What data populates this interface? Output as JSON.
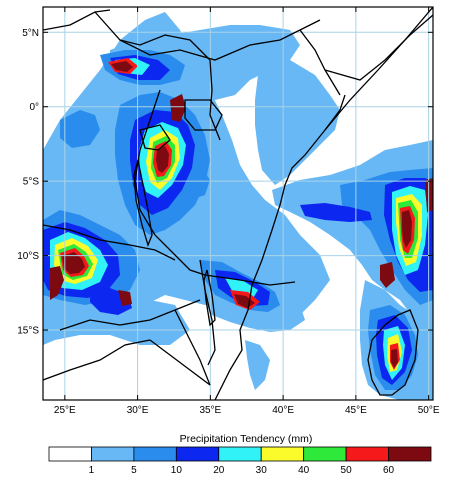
{
  "map": {
    "lon_range": [
      23.5,
      50.3
    ],
    "lat_range": [
      -19.7,
      6.7
    ],
    "x_ticks": [
      {
        "value": 25,
        "label": "25°E"
      },
      {
        "value": 30,
        "label": "30°E"
      },
      {
        "value": 35,
        "label": "35°E"
      },
      {
        "value": 40,
        "label": "40°E"
      },
      {
        "value": 45,
        "label": "45°E"
      },
      {
        "value": 50,
        "label": "50°E"
      }
    ],
    "y_ticks": [
      {
        "value": 5,
        "label": "5°N"
      },
      {
        "value": 0,
        "label": "0°"
      },
      {
        "value": -5,
        "label": "5°S"
      },
      {
        "value": -10,
        "label": "10°S"
      },
      {
        "value": -15,
        "label": "15°S"
      }
    ],
    "grid": true,
    "grid_color": "#a9d3e6"
  },
  "colorbar": {
    "title": "Precipitation Tendency  (mm)",
    "levels": [
      "1",
      "5",
      "10",
      "20",
      "30",
      "40",
      "50",
      "60"
    ],
    "colors": [
      "#ffffff",
      "#68b8f5",
      "#2a8cec",
      "#0c27f0",
      "#31f3f7",
      "#fbfb2c",
      "#2ee83a",
      "#f5191b",
      "#7c0a10"
    ]
  }
}
